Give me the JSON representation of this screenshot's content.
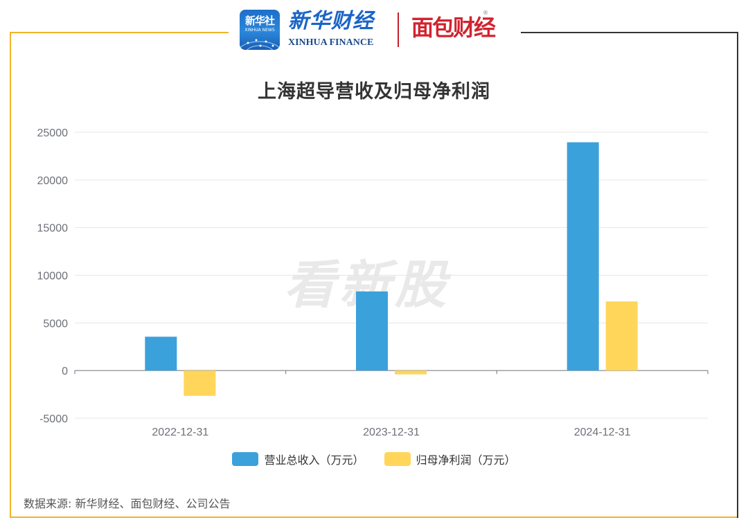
{
  "header": {
    "xinhua_badge_cn": "新华社",
    "xinhua_badge_en": "XINHUA NEWS",
    "xinhua_finance_cn": "新华财经",
    "xinhua_finance_en": "XINHUA FINANCE",
    "mianbao_cn": "面包财经",
    "mianbao_reg": "®"
  },
  "watermark": "看新股",
  "source_note": "数据来源: 新华财经、面包财经、公司公告",
  "colors": {
    "frame_gold": "#f0b429",
    "frame_dark": "#333333",
    "revenue": "#3ba1db",
    "profit": "#ffd65a"
  },
  "chart_data": {
    "type": "bar",
    "title": "上海超导营收及归母净利润",
    "categories": [
      "2022-12-31",
      "2023-12-31",
      "2024-12-31"
    ],
    "series": [
      {
        "name": "营业总收入（万元）",
        "color": "#3ba1db",
        "values": [
          3550,
          8300,
          23950
        ]
      },
      {
        "name": "归母净利润（万元）",
        "color": "#ffd65a",
        "values": [
          -2650,
          -400,
          7250
        ]
      }
    ],
    "ylim": [
      -5000,
      25000
    ],
    "yticks": [
      25000,
      20000,
      15000,
      10000,
      5000,
      0,
      -5000
    ],
    "xlabel": "",
    "ylabel": "",
    "grid": true,
    "legend": "bottom-center"
  }
}
